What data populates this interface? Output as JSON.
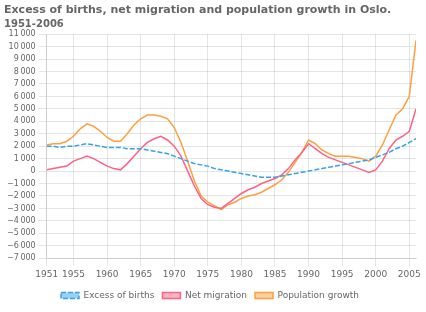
{
  "chart_data": {
    "type": "line",
    "title": "Excess of births, net migration and population growth in Oslo.",
    "subtitle": "1951-2006",
    "x": [
      1951,
      1952,
      1953,
      1954,
      1955,
      1956,
      1957,
      1958,
      1959,
      1960,
      1961,
      1962,
      1963,
      1964,
      1965,
      1966,
      1967,
      1968,
      1969,
      1970,
      1971,
      1972,
      1973,
      1974,
      1975,
      1976,
      1977,
      1978,
      1979,
      1980,
      1981,
      1982,
      1983,
      1984,
      1985,
      1986,
      1987,
      1988,
      1989,
      1990,
      1991,
      1992,
      1993,
      1994,
      1995,
      1996,
      1997,
      1998,
      1999,
      2000,
      2001,
      2002,
      2003,
      2004,
      2005,
      2006
    ],
    "series": [
      {
        "name": "Excess of births",
        "line_style": "dashed",
        "values": [
          2000,
          2000,
          1900,
          2000,
          2000,
          2100,
          2200,
          2100,
          2000,
          1900,
          1900,
          1900,
          1800,
          1800,
          1800,
          1700,
          1600,
          1500,
          1400,
          1200,
          1000,
          800,
          600,
          500,
          400,
          200,
          100,
          0,
          -100,
          -200,
          -300,
          -400,
          -500,
          -500,
          -500,
          -400,
          -300,
          -200,
          -100,
          0,
          100,
          200,
          300,
          400,
          500,
          600,
          700,
          800,
          900,
          1100,
          1300,
          1500,
          1800,
          2000,
          2300,
          2600
        ]
      },
      {
        "name": "Net migration",
        "line_style": "solid",
        "values": [
          100,
          200,
          300,
          400,
          800,
          1000,
          1200,
          1000,
          700,
          400,
          200,
          100,
          600,
          1200,
          1800,
          2300,
          2600,
          2800,
          2500,
          2000,
          1200,
          0,
          -1200,
          -2200,
          -2700,
          -2900,
          -3000,
          -2600,
          -2200,
          -1800,
          -1500,
          -1300,
          -1000,
          -800,
          -600,
          -300,
          200,
          900,
          1500,
          2200,
          1800,
          1400,
          1100,
          900,
          700,
          500,
          300,
          100,
          -100,
          100,
          800,
          1800,
          2500,
          2800,
          3200,
          5000
        ]
      },
      {
        "name": "Population growth",
        "line_style": "solid",
        "values": [
          2100,
          2200,
          2200,
          2400,
          2800,
          3400,
          3800,
          3600,
          3200,
          2700,
          2400,
          2400,
          3000,
          3700,
          4200,
          4500,
          4500,
          4400,
          4200,
          3500,
          2300,
          800,
          -800,
          -2000,
          -2500,
          -2800,
          -3100,
          -2700,
          -2500,
          -2200,
          -2000,
          -1900,
          -1700,
          -1400,
          -1100,
          -700,
          -100,
          700,
          1500,
          2500,
          2200,
          1700,
          1400,
          1200,
          1200,
          1200,
          1100,
          1000,
          800,
          1200,
          2100,
          3300,
          4500,
          5000,
          6000,
          10500
        ]
      }
    ],
    "xlim": [
      1951,
      2006
    ],
    "xticks": [
      1951,
      1955,
      1960,
      1965,
      1970,
      1975,
      1980,
      1985,
      1990,
      1995,
      2000,
      2005
    ],
    "ylim": [
      -7000,
      11000
    ],
    "yticks": [
      {
        "value": -7000,
        "label": "−7 000"
      },
      {
        "value": -6000,
        "label": "−6 000"
      },
      {
        "value": -5000,
        "label": "−5 000"
      },
      {
        "value": -4000,
        "label": "−4 000"
      },
      {
        "value": -3000,
        "label": "−3 000"
      },
      {
        "value": -2000,
        "label": "−2 000"
      },
      {
        "value": -1000,
        "label": "−1 000"
      },
      0,
      {
        "value": 1000,
        "label": "1 000"
      },
      {
        "value": 2000,
        "label": "2 000"
      },
      {
        "value": 3000,
        "label": "3 000"
      },
      {
        "value": 4000,
        "label": "4 000"
      },
      {
        "value": 5000,
        "label": "5 000"
      },
      {
        "value": 6000,
        "label": "6 000"
      },
      {
        "value": 7000,
        "label": "7 000"
      },
      {
        "value": 8000,
        "label": "8 000"
      },
      {
        "value": 9000,
        "label": "9 000"
      },
      {
        "value": 10000,
        "label": "10 000"
      },
      {
        "value": 11000,
        "label": "11 000"
      }
    ],
    "grid": true,
    "legend": "bottom"
  }
}
